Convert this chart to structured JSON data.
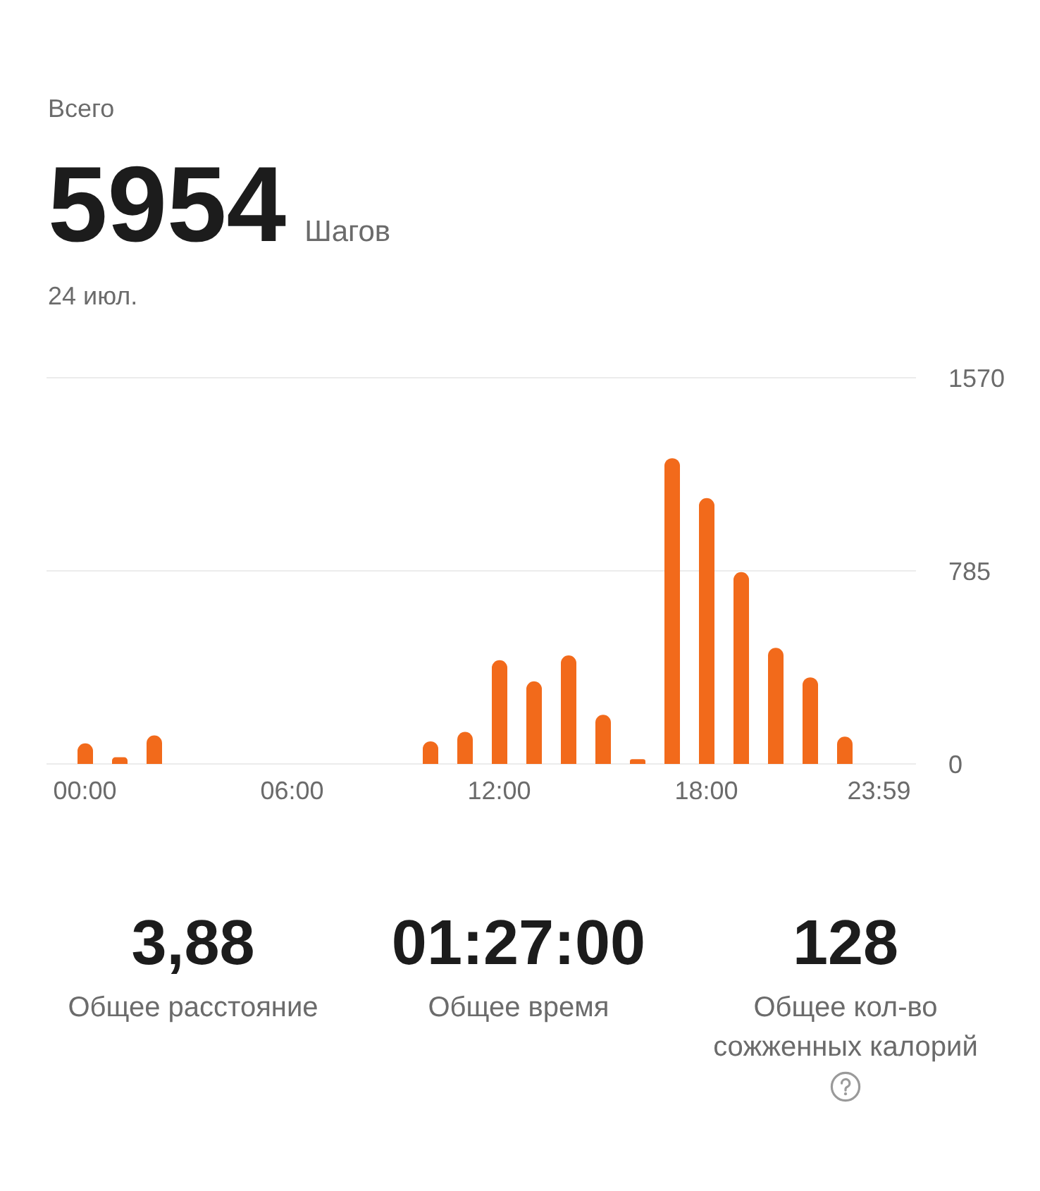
{
  "chart_data": {
    "type": "bar",
    "title": "Всего",
    "subtitle": "24 июл.",
    "categories": [
      "00:00",
      null,
      null,
      null,
      null,
      null,
      "06:00",
      null,
      null,
      null,
      null,
      null,
      "12:00",
      null,
      null,
      null,
      null,
      null,
      "18:00",
      null,
      null,
      null,
      null,
      "23:59"
    ],
    "values": [
      84,
      27,
      116,
      0,
      0,
      0,
      0,
      0,
      0,
      0,
      92,
      130,
      422,
      336,
      441,
      200,
      19,
      1243,
      1081,
      780,
      472,
      352,
      111,
      0
    ],
    "color": "#f26a1b",
    "ylim": [
      0,
      1570
    ],
    "yticks": [
      0,
      785,
      1570
    ],
    "grid": "y",
    "annotations": [
      "5954",
      "Шагов",
      "3,88",
      "Общее расстояние",
      "01:27:00",
      "Общее время",
      "128",
      "Общее кол-во сожженных калорий"
    ]
  }
}
